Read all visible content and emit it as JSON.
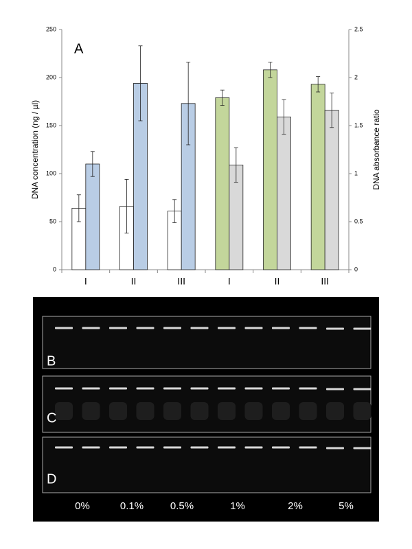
{
  "chart_data": {
    "type": "bar",
    "annotation": "A",
    "y_label": "DNA concentration (ng / µl)",
    "y2_label": "DNA absorbance ratio",
    "categories": [
      "I",
      "II",
      "III",
      "I",
      "II",
      "III"
    ],
    "series": [
      {
        "values": [
          64,
          66,
          61,
          179,
          208,
          193
        ],
        "errors": [
          14,
          28,
          12,
          8,
          8,
          8
        ],
        "colors": [
          "#ffffff",
          "#ffffff",
          "#ffffff",
          "#c3d69b",
          "#c3d69b",
          "#c3d69b"
        ]
      },
      {
        "axis": "y2",
        "values": [
          1.1,
          1.94,
          1.73,
          1.09,
          1.59,
          1.66
        ],
        "errors": [
          0.13,
          0.39,
          0.43,
          0.18,
          0.18,
          0.18
        ],
        "colors": [
          "#b9cde5",
          "#b9cde5",
          "#b9cde5",
          "#d9d9d9",
          "#d9d9d9",
          "#d9d9d9"
        ]
      }
    ],
    "ylim": [
      0,
      250
    ],
    "yticks": [
      0,
      50,
      100,
      150,
      200,
      250
    ],
    "y2lim": [
      0,
      2.5
    ],
    "y2ticks": [
      0,
      0.5,
      1,
      1.5,
      2,
      2.5
    ],
    "grid": false
  },
  "gel": {
    "panels": [
      {
        "label": "B"
      },
      {
        "label": "C"
      },
      {
        "label": "D"
      }
    ],
    "lane_labels": [
      "0%",
      "0.1%",
      "0.5%",
      "1%",
      "2%",
      "5%"
    ]
  }
}
